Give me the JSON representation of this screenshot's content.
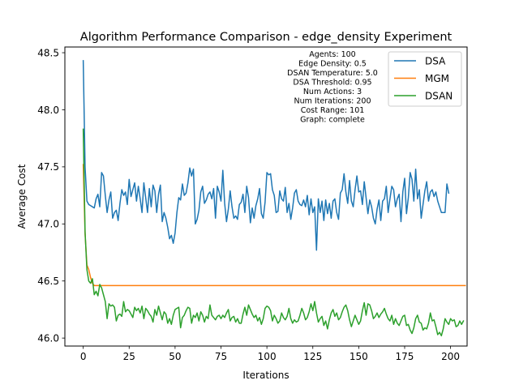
{
  "chart_data": {
    "type": "line",
    "title": "Algorithm Performance Comparison - edge_density Experiment",
    "xlabel": "Iterations",
    "ylabel": "Average Cost",
    "xlim": [
      -10,
      209
    ],
    "ylim": [
      45.93,
      48.55
    ],
    "xticks": [
      0,
      25,
      50,
      75,
      100,
      125,
      150,
      175,
      200
    ],
    "yticks": [
      46.0,
      46.5,
      47.0,
      47.5,
      48.0,
      48.5
    ],
    "ytick_labels": [
      "46.0",
      "46.5",
      "47.0",
      "47.5",
      "48.0",
      "48.5"
    ],
    "grid": false,
    "legend_position": "top-right",
    "annotation": [
      "Agents: 100",
      "Edge Density: 0.5",
      "DSAN Temperature: 5.0",
      "DSA Threshold: 0.95",
      "Num Actions: 3",
      "Num Iterations: 200",
      "Cost Range: 101",
      "Graph: complete"
    ],
    "series": [
      {
        "name": "DSA",
        "color": "#1f77b4",
        "x_start": 0,
        "values": [
          48.43,
          47.5,
          47.2,
          47.17,
          47.16,
          47.15,
          47.14,
          47.22,
          47.26,
          47.15,
          47.45,
          47.42,
          47.25,
          47.1,
          47.21,
          47.28,
          47.05,
          47.1,
          47.12,
          47.03,
          47.18,
          47.3,
          47.25,
          47.28,
          47.17,
          47.39,
          47.24,
          47.3,
          47.36,
          47.2,
          47.33,
          47.22,
          47.1,
          47.36,
          47.23,
          47.1,
          47.31,
          47.15,
          47.34,
          47.29,
          47.1,
          47.26,
          47.34,
          47.02,
          47.1,
          47.05,
          46.97,
          46.87,
          46.9,
          46.83,
          46.92,
          47.1,
          47.23,
          47.21,
          47.35,
          47.25,
          47.27,
          47.36,
          47.49,
          47.42,
          47.48,
          47.0,
          47.04,
          47.12,
          47.28,
          47.33,
          47.18,
          47.21,
          47.26,
          47.28,
          47.22,
          47.31,
          47.05,
          47.33,
          47.28,
          47.2,
          47.47,
          47.18,
          47.02,
          47.13,
          47.29,
          47.15,
          47.05,
          47.07,
          47.04,
          47.17,
          47.19,
          47.26,
          47.1,
          47.33,
          47.23,
          47.01,
          47.14,
          47.05,
          47.16,
          47.22,
          47.31,
          47.09,
          47.05,
          47.19,
          47.45,
          47.43,
          47.44,
          47.3,
          47.25,
          47.1,
          47.11,
          47.29,
          47.22,
          47.2,
          47.32,
          47.1,
          47.18,
          47.04,
          47.14,
          47.27,
          47.3,
          47.2,
          47.17,
          47.16,
          47.21,
          47.15,
          47.25,
          47.08,
          47.22,
          47.1,
          47.15,
          46.77,
          47.22,
          47.1,
          47.2,
          47.03,
          47.21,
          47.09,
          47.18,
          47.05,
          47.2,
          47.22,
          47.1,
          47.04,
          47.27,
          47.3,
          47.44,
          47.28,
          47.18,
          47.38,
          47.2,
          47.15,
          47.3,
          47.42,
          47.28,
          47.29,
          47.17,
          47.37,
          47.23,
          47.09,
          47.21,
          47.15,
          47.05,
          47.0,
          47.13,
          47.21,
          47.03,
          47.2,
          47.22,
          47.33,
          47.1,
          47.22,
          47.33,
          47.3,
          47.15,
          47.22,
          47.26,
          47.02,
          47.28,
          47.4,
          47.09,
          47.23,
          47.45,
          47.39,
          47.2,
          47.48,
          47.22,
          47.3,
          47.05,
          47.17,
          47.29,
          47.37,
          47.2,
          47.28,
          47.3,
          47.24,
          47.28,
          47.2,
          47.15,
          47.1,
          47.1,
          47.1,
          47.35,
          47.27
        ]
      },
      {
        "name": "MGM",
        "color": "#ff7f0e",
        "x_start": 0,
        "values": [
          47.52,
          46.91,
          46.64,
          46.6,
          46.53,
          46.48,
          46.46,
          46.46,
          46.46,
          46.46,
          46.46,
          46.46,
          46.46,
          46.46,
          46.46,
          46.46,
          46.46,
          46.46,
          46.46,
          46.46,
          46.46,
          46.46,
          46.46,
          46.46,
          46.46,
          46.46,
          46.46,
          46.46,
          46.46,
          46.46,
          46.46,
          46.46,
          46.46,
          46.46,
          46.46,
          46.46,
          46.46,
          46.46,
          46.46,
          46.46,
          46.46,
          46.46,
          46.46,
          46.46,
          46.46,
          46.46,
          46.46,
          46.46,
          46.46,
          46.46,
          46.46,
          46.46,
          46.46,
          46.46,
          46.46,
          46.46,
          46.46,
          46.46,
          46.46,
          46.46,
          46.46,
          46.46,
          46.46,
          46.46,
          46.46,
          46.46,
          46.46,
          46.46,
          46.46,
          46.46,
          46.46,
          46.46,
          46.46,
          46.46,
          46.46,
          46.46,
          46.46,
          46.46,
          46.46,
          46.46,
          46.46,
          46.46,
          46.46,
          46.46,
          46.46,
          46.46,
          46.46,
          46.46,
          46.46,
          46.46,
          46.46,
          46.46,
          46.46,
          46.46,
          46.46,
          46.46,
          46.46,
          46.46,
          46.46,
          46.46,
          46.46,
          46.46,
          46.46,
          46.46,
          46.46,
          46.46,
          46.46,
          46.46,
          46.46,
          46.46,
          46.46,
          46.46,
          46.46,
          46.46,
          46.46,
          46.46,
          46.46,
          46.46,
          46.46,
          46.46,
          46.46,
          46.46,
          46.46,
          46.46,
          46.46,
          46.46,
          46.46,
          46.46,
          46.46,
          46.46,
          46.46,
          46.46,
          46.46,
          46.46,
          46.46,
          46.46,
          46.46,
          46.46,
          46.46,
          46.46,
          46.46,
          46.46,
          46.46,
          46.46,
          46.46,
          46.46,
          46.46,
          46.46,
          46.46,
          46.46,
          46.46,
          46.46,
          46.46,
          46.46,
          46.46,
          46.46,
          46.46,
          46.46,
          46.46,
          46.46,
          46.46,
          46.46,
          46.46,
          46.46,
          46.46,
          46.46,
          46.46,
          46.46,
          46.46,
          46.46,
          46.46,
          46.46,
          46.46,
          46.46,
          46.46,
          46.46,
          46.46,
          46.46,
          46.46,
          46.46,
          46.46,
          46.46,
          46.46,
          46.46,
          46.46,
          46.46,
          46.46,
          46.46,
          46.46,
          46.46,
          46.46,
          46.46,
          46.46,
          46.46,
          46.46,
          46.46,
          46.46,
          46.46,
          46.46,
          46.46,
          46.46,
          46.46,
          46.46,
          46.46,
          46.46,
          46.46,
          46.46,
          46.46,
          46.46
        ]
      },
      {
        "name": "DSAN",
        "color": "#2ca02c",
        "x_start": 0,
        "values": [
          47.83,
          46.93,
          46.6,
          46.5,
          46.48,
          46.52,
          46.38,
          46.41,
          46.37,
          46.47,
          46.44,
          46.38,
          46.32,
          46.17,
          46.3,
          46.28,
          46.29,
          46.27,
          46.15,
          46.2,
          46.21,
          46.19,
          46.32,
          46.23,
          46.25,
          46.24,
          46.21,
          46.18,
          46.27,
          46.24,
          46.26,
          46.22,
          46.28,
          46.17,
          46.26,
          46.24,
          46.21,
          46.19,
          46.14,
          46.25,
          46.2,
          46.28,
          46.22,
          46.16,
          46.23,
          46.21,
          46.13,
          46.17,
          46.12,
          46.2,
          46.25,
          46.26,
          46.27,
          46.09,
          46.18,
          46.2,
          46.24,
          46.27,
          46.26,
          46.13,
          46.2,
          46.18,
          46.22,
          46.15,
          46.23,
          46.2,
          46.14,
          46.19,
          46.17,
          46.29,
          46.2,
          46.18,
          46.16,
          46.19,
          46.2,
          46.17,
          46.2,
          46.18,
          46.22,
          46.25,
          46.15,
          46.18,
          46.19,
          46.14,
          46.17,
          46.13,
          46.13,
          46.21,
          46.27,
          46.2,
          46.29,
          46.25,
          46.21,
          46.18,
          46.2,
          46.15,
          46.18,
          46.12,
          46.17,
          46.26,
          46.28,
          46.27,
          46.24,
          46.15,
          46.2,
          46.17,
          46.13,
          46.15,
          46.22,
          46.18,
          46.16,
          46.19,
          46.26,
          46.17,
          46.13,
          46.16,
          46.14,
          46.15,
          46.2,
          46.26,
          46.22,
          46.16,
          46.18,
          46.23,
          46.3,
          46.24,
          46.32,
          46.22,
          46.14,
          46.17,
          46.19,
          46.11,
          46.15,
          46.08,
          46.16,
          46.22,
          46.25,
          46.19,
          46.22,
          46.16,
          46.18,
          46.23,
          46.27,
          46.29,
          46.24,
          46.16,
          46.1,
          46.15,
          46.2,
          46.16,
          46.12,
          46.15,
          46.24,
          46.31,
          46.2,
          46.3,
          46.29,
          46.24,
          46.17,
          46.19,
          46.22,
          46.18,
          46.21,
          46.23,
          46.26,
          46.21,
          46.17,
          46.15,
          46.2,
          46.12,
          46.17,
          46.13,
          46.11,
          46.15,
          46.19,
          46.2,
          46.11,
          46.12,
          46.07,
          46.04,
          46.09,
          46.17,
          46.2,
          46.14,
          46.13,
          46.07,
          46.09,
          46.08,
          46.13,
          46.22,
          46.15,
          46.16,
          46.1,
          46.03,
          46.05,
          46.02,
          46.08,
          46.17,
          46.14,
          46.12,
          46.17,
          46.15,
          46.16,
          46.1,
          46.11,
          46.15,
          46.12,
          46.15
        ]
      }
    ]
  }
}
